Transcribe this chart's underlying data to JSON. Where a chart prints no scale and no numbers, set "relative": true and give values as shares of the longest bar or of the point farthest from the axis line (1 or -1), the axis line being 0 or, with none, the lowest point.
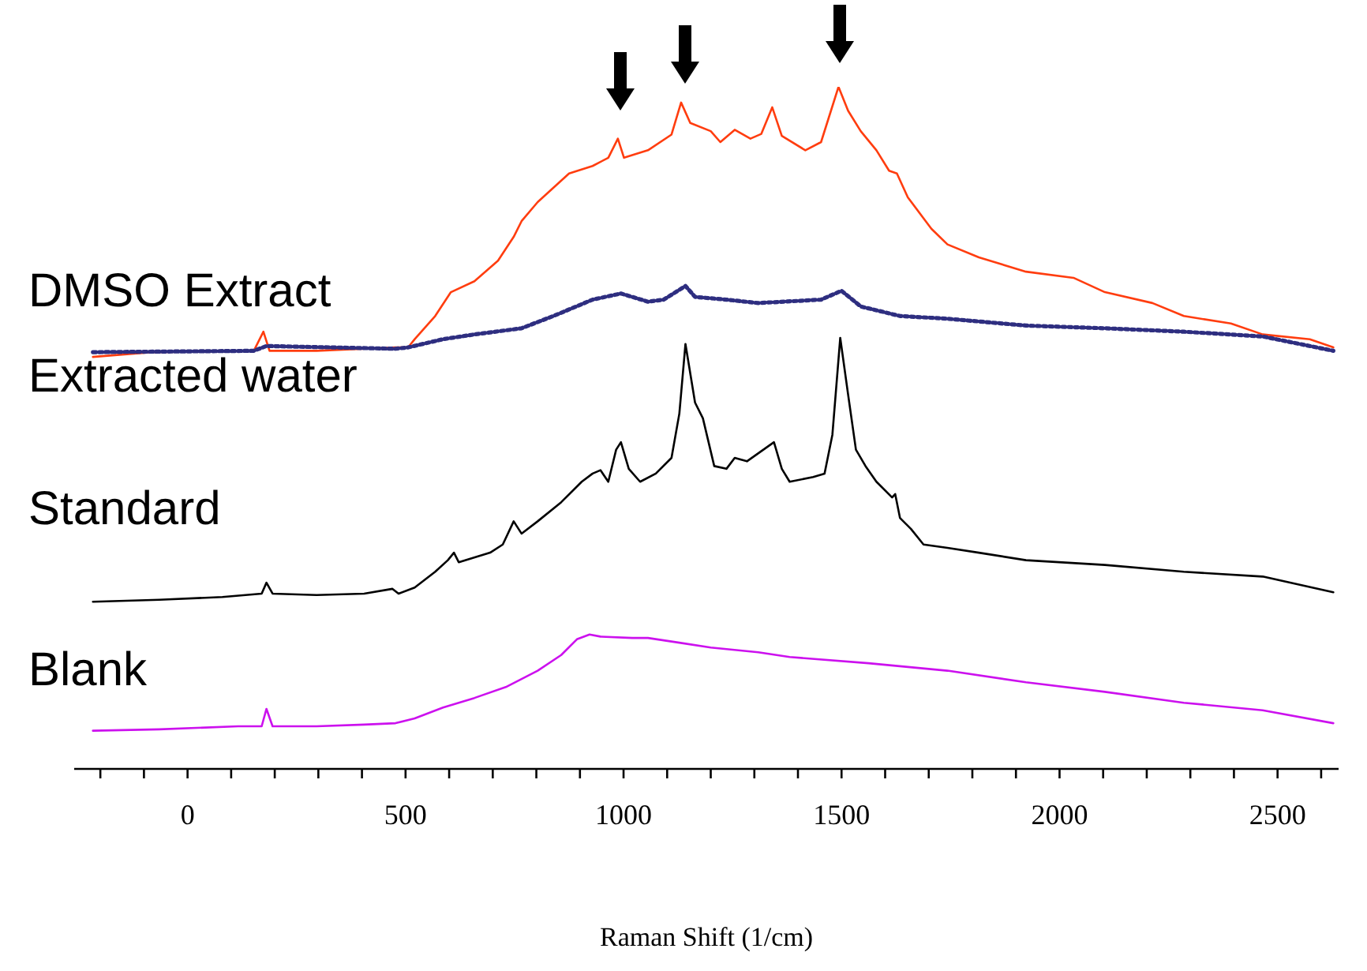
{
  "chart_data": {
    "type": "line",
    "relative": true,
    "xlabel": "Raman Shift (1/cm)",
    "marker": "none",
    "xlim": [
      -260,
      2640
    ],
    "xticks": [
      {
        "value": -200,
        "label": null
      },
      {
        "value": -100,
        "label": null
      },
      0,
      {
        "value": 100,
        "label": null
      },
      {
        "value": 200,
        "label": null
      },
      {
        "value": 300,
        "label": null
      },
      {
        "value": 400,
        "label": null
      },
      500,
      {
        "value": 600,
        "label": null
      },
      {
        "value": 700,
        "label": null
      },
      {
        "value": 800,
        "label": null
      },
      {
        "value": 900,
        "label": null
      },
      1000,
      {
        "value": 1100,
        "label": null
      },
      {
        "value": 1200,
        "label": null
      },
      {
        "value": 1300,
        "label": null
      },
      {
        "value": 1400,
        "label": null
      },
      1500,
      {
        "value": 1600,
        "label": null
      },
      {
        "value": 1700,
        "label": null
      },
      {
        "value": 1800,
        "label": null
      },
      {
        "value": 1900,
        "label": null
      },
      2000,
      {
        "value": 2100,
        "label": null
      },
      {
        "value": 2200,
        "label": null
      },
      {
        "value": 2300,
        "label": null
      },
      {
        "value": 2400,
        "label": null
      },
      2500,
      {
        "value": 2600,
        "label": null
      }
    ],
    "series": [
      {
        "name": "DMSO Extract",
        "color": "#ff3d0f",
        "line_style": "solid",
        "x": [
          -217,
          -83,
          152,
          174,
          188,
          296,
          477,
          506,
          521,
          568,
          604,
          658,
          712,
          748,
          766,
          803,
          875,
          929,
          965,
          987,
          1001,
          1056,
          1110,
          1132,
          1153,
          1200,
          1222,
          1255,
          1291,
          1316,
          1341,
          1363,
          1417,
          1453,
          1493,
          1515,
          1544,
          1580,
          1609,
          1627,
          1652,
          1706,
          1743,
          1815,
          1923,
          2032,
          2104,
          2213,
          2285,
          2393,
          2466,
          2574,
          2628
        ],
        "values": [
          0.604,
          0.611,
          0.613,
          0.641,
          0.613,
          0.613,
          0.618,
          0.618,
          0.63,
          0.664,
          0.699,
          0.715,
          0.745,
          0.78,
          0.803,
          0.831,
          0.873,
          0.884,
          0.896,
          0.924,
          0.896,
          0.907,
          0.93,
          0.977,
          0.947,
          0.935,
          0.919,
          0.937,
          0.924,
          0.931,
          0.97,
          0.928,
          0.907,
          0.919,
          1.0,
          0.965,
          0.935,
          0.907,
          0.877,
          0.873,
          0.838,
          0.792,
          0.769,
          0.75,
          0.729,
          0.72,
          0.699,
          0.683,
          0.664,
          0.653,
          0.637,
          0.63,
          0.618
        ]
      },
      {
        "name": "Extracted water",
        "color": "#2e2e80",
        "line_style": "dotted",
        "x": [
          -217,
          152,
          181,
          477,
          506,
          586,
          658,
          766,
          839,
          929,
          994,
          1056,
          1092,
          1142,
          1164,
          1236,
          1309,
          1453,
          1500,
          1544,
          1634,
          1743,
          1923,
          2104,
          2285,
          2466,
          2628
        ],
        "values": [
          0.611,
          0.613,
          0.62,
          0.616,
          0.618,
          0.63,
          0.637,
          0.646,
          0.664,
          0.688,
          0.697,
          0.685,
          0.688,
          0.708,
          0.692,
          0.688,
          0.683,
          0.688,
          0.701,
          0.678,
          0.664,
          0.66,
          0.65,
          0.646,
          0.641,
          0.634,
          0.613
        ]
      },
      {
        "name": "Standard",
        "color": "#000000",
        "line_style": "solid",
        "x": [
          -217,
          -65,
          80,
          170,
          181,
          195,
          296,
          405,
          470,
          484,
          521,
          568,
          597,
          611,
          622,
          694,
          723,
          748,
          766,
          803,
          857,
          904,
          929,
          947,
          965,
          983,
          994,
          1012,
          1038,
          1074,
          1110,
          1128,
          1142,
          1164,
          1182,
          1208,
          1236,
          1255,
          1283,
          1345,
          1363,
          1381,
          1435,
          1461,
          1479,
          1497,
          1515,
          1533,
          1555,
          1580,
          1616,
          1623,
          1634,
          1659,
          1688,
          1743,
          1815,
          1923,
          2104,
          2285,
          2466,
          2628
        ],
        "values": [
          0.245,
          0.248,
          0.252,
          0.257,
          0.273,
          0.257,
          0.255,
          0.257,
          0.264,
          0.257,
          0.266,
          0.289,
          0.306,
          0.317,
          0.303,
          0.317,
          0.329,
          0.363,
          0.345,
          0.363,
          0.391,
          0.421,
          0.433,
          0.438,
          0.421,
          0.468,
          0.479,
          0.44,
          0.421,
          0.433,
          0.456,
          0.521,
          0.623,
          0.537,
          0.514,
          0.444,
          0.44,
          0.456,
          0.451,
          0.479,
          0.44,
          0.421,
          0.428,
          0.433,
          0.49,
          0.632,
          0.549,
          0.468,
          0.444,
          0.421,
          0.398,
          0.403,
          0.368,
          0.352,
          0.329,
          0.324,
          0.317,
          0.306,
          0.299,
          0.289,
          0.282,
          0.259
        ]
      },
      {
        "name": "Blank",
        "color": "#cc11ee",
        "line_style": "solid",
        "x": [
          -217,
          -65,
          116,
          170,
          181,
          195,
          296,
          405,
          477,
          521,
          586,
          658,
          730,
          803,
          857,
          893,
          922,
          947,
          1020,
          1056,
          1128,
          1200,
          1309,
          1381,
          1562,
          1743,
          1923,
          2104,
          2285,
          2466,
          2628
        ],
        "values": [
          0.056,
          0.058,
          0.0625,
          0.0625,
          0.088,
          0.0625,
          0.0625,
          0.065,
          0.067,
          0.074,
          0.09,
          0.104,
          0.12,
          0.144,
          0.167,
          0.19,
          0.197,
          0.194,
          0.192,
          0.192,
          0.185,
          0.178,
          0.171,
          0.164,
          0.155,
          0.144,
          0.127,
          0.113,
          0.097,
          0.086,
          0.067
        ]
      }
    ]
  }
}
